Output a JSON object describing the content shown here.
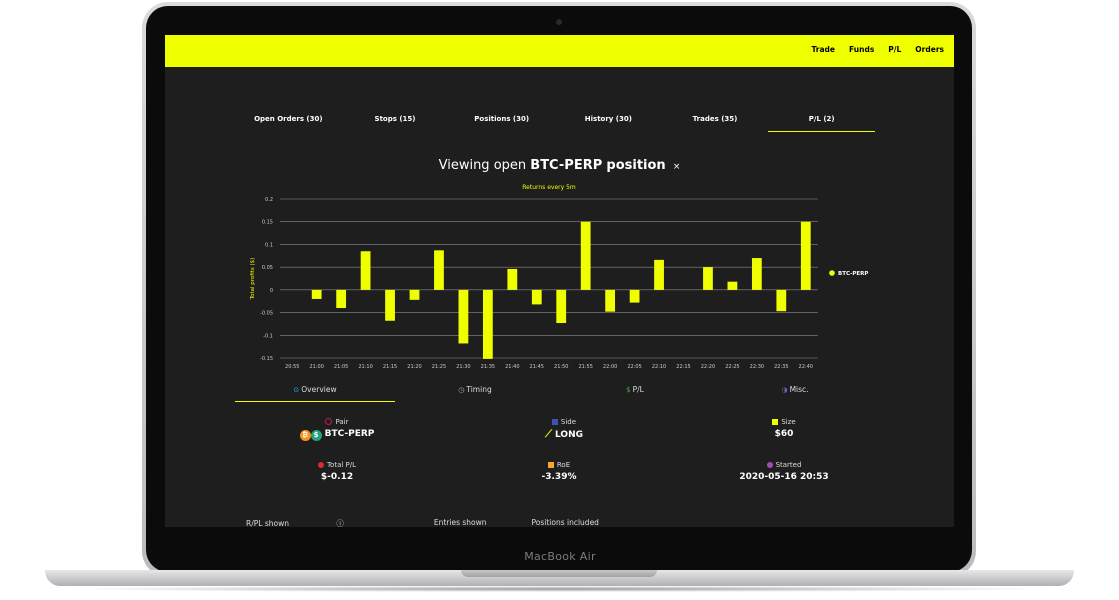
{
  "device_label": "MacBook Air",
  "nav": [
    "Trade",
    "Funds",
    "P/L",
    "Orders"
  ],
  "tabs": [
    "Open Orders (30)",
    "Stops (15)",
    "Positions (30)",
    "History (30)",
    "Trades (35)",
    "P/L (2)"
  ],
  "active_tab": 5,
  "heading": {
    "prefix": "Viewing open",
    "market": "BTC-PERP",
    "suffix": "position",
    "close": "×"
  },
  "colors": {
    "accent": "#f0ff00",
    "background": "#1e1e1e"
  },
  "chart_data": {
    "type": "bar",
    "title": "Returns every 5m",
    "ylabel": "Total profits ($)",
    "ylim": [
      -0.15,
      0.2
    ],
    "yticks": [
      -0.15,
      -0.1,
      -0.05,
      0,
      0.05,
      0.1,
      0.15,
      0.2
    ],
    "ytick_labels": [
      "-0.15",
      "-0.1",
      "-0.05",
      "0",
      "0.05",
      "0.1",
      "0.15",
      "0.2"
    ],
    "categories": [
      "20:55",
      "21:00",
      "21:05",
      "21:10",
      "21:15",
      "21:20",
      "21:25",
      "21:30",
      "21:35",
      "21:40",
      "21:45",
      "21:50",
      "21:55",
      "22:00",
      "22:05",
      "22:10",
      "22:15",
      "22:20",
      "22:25",
      "22:30",
      "22:35",
      "22:40"
    ],
    "series": [
      {
        "name": "BTC-PERP",
        "color": "#f0ff00",
        "values": [
          0,
          -0.02,
          -0.04,
          0.085,
          -0.068,
          -0.022,
          0.087,
          -0.118,
          -0.152,
          0.046,
          -0.032,
          -0.073,
          0.15,
          -0.048,
          -0.028,
          0.066,
          0,
          0.05,
          0.018,
          0.07,
          -0.047,
          0.15
        ]
      }
    ],
    "legend": "right",
    "grid": true
  },
  "subtabs": [
    {
      "icon": "overview-icon",
      "glyph": "⊙",
      "label": "Overview"
    },
    {
      "icon": "clock-icon",
      "glyph": "◷",
      "label": "Timing"
    },
    {
      "icon": "dollar-icon",
      "glyph": "$",
      "label": "P/L"
    },
    {
      "icon": "pie-icon",
      "glyph": "◑",
      "label": "Misc."
    }
  ],
  "active_subtab": 0,
  "stats": {
    "pair": {
      "label": "Pair",
      "value": "BTC-PERP",
      "icon_color": "#c2185b"
    },
    "side": {
      "label": "Side",
      "value": "LONG",
      "icon_color": "#3f51b5"
    },
    "size": {
      "label": "Size",
      "value": "$60",
      "icon_color": "#f0ff00"
    },
    "total_pl": {
      "label": "Total P/L",
      "value": "$-0.12",
      "icon_color": "#d32f2f"
    },
    "roe": {
      "label": "RoE",
      "value": "-3.39%",
      "icon_color": "#f9a825"
    },
    "started": {
      "label": "Started",
      "value": "2020-05-16 20:53",
      "icon_color": "#ab47bc"
    }
  },
  "bottom_labels": [
    "R/PL shown",
    "Entries shown",
    "Positions included"
  ]
}
